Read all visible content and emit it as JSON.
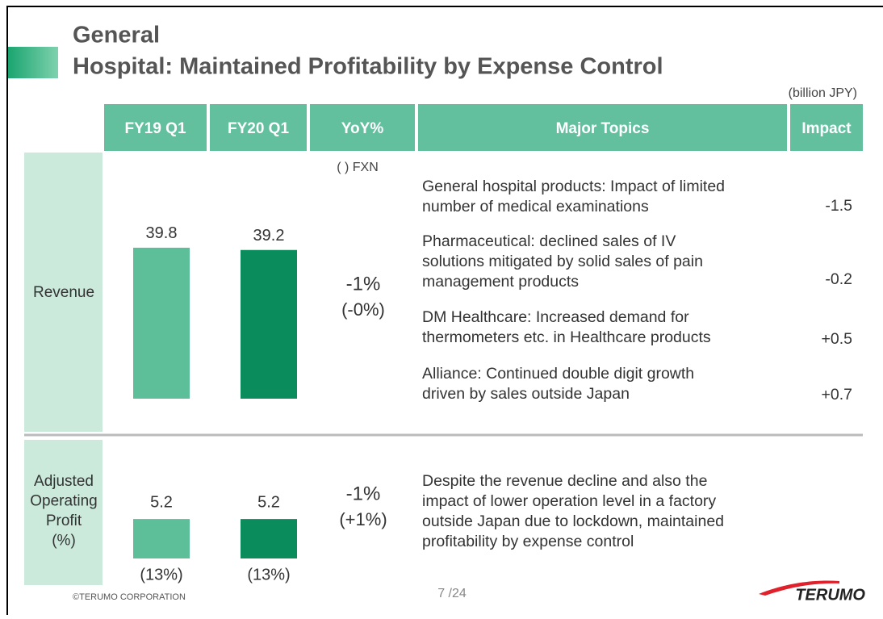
{
  "title": [
    "General",
    "Hospital: Maintained Profitability by Expense Control"
  ],
  "unit": "(billion JPY)",
  "columns": [
    "FY19 Q1",
    "FY20 Q1",
    "YoY%",
    "Major Topics",
    "Impact"
  ],
  "fxn_note": "( ) FXN",
  "revenue": {
    "label": "Revenue",
    "values": [
      39.8,
      39.2
    ],
    "yoy": "-1%",
    "yoy_fxn": "(-0%)",
    "topics": [
      {
        "lines": [
          "General hospital products: Impact of limited",
          "number of medical examinations"
        ],
        "impact": "-1.5"
      },
      {
        "lines": [
          "Pharmaceutical: declined sales of IV",
          "solutions mitigated by solid sales of pain",
          "management products"
        ],
        "impact": "-0.2"
      },
      {
        "lines": [
          "DM Healthcare: Increased demand for",
          "thermometers etc. in Healthcare products"
        ],
        "impact": "+0.5"
      },
      {
        "lines": [
          "Alliance: Continued double digit growth",
          "driven by sales outside Japan"
        ],
        "impact": "+0.7"
      }
    ]
  },
  "profit": {
    "label": [
      "Adjusted",
      "Operating",
      "Profit",
      "(%)"
    ],
    "values": [
      5.2,
      5.2
    ],
    "margins": [
      "(13%)",
      "(13%)"
    ],
    "yoy": "-1%",
    "yoy_fxn": "(+1%)",
    "topic": [
      "Despite the revenue decline and also the",
      "impact of lower operation level in a factory",
      "outside Japan due to lockdown, maintained",
      "profitability by expense control"
    ]
  },
  "footer": {
    "copyright": "©TERUMO CORPORATION",
    "page": "7 /24",
    "logo": "TERUMO"
  }
}
